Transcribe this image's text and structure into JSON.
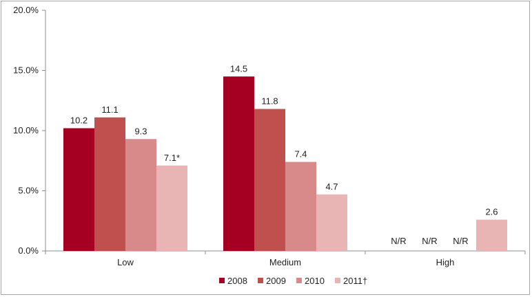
{
  "chart_data": {
    "type": "bar",
    "title": "",
    "xlabel": "",
    "ylabel": "",
    "categories": [
      "Low",
      "Medium",
      "High"
    ],
    "ylim": [
      0,
      20
    ],
    "yticks": [
      0,
      5,
      10,
      15,
      20
    ],
    "ytick_labels": [
      "0.0%",
      "5.0%",
      "10.0%",
      "15.0%",
      "20.0%"
    ],
    "grid": false,
    "legend_position": "bottom",
    "series": [
      {
        "name": "2008",
        "color": "#a50021",
        "values": [
          10.2,
          14.5,
          null
        ],
        "labels": [
          "10.2",
          "14.5",
          "N/R"
        ]
      },
      {
        "name": "2009",
        "color": "#c0504d",
        "values": [
          11.1,
          11.8,
          null
        ],
        "labels": [
          "11.1",
          "11.8",
          "N/R"
        ]
      },
      {
        "name": "2010",
        "color": "#d88a8a",
        "values": [
          9.3,
          7.4,
          null
        ],
        "labels": [
          "9.3",
          "7.4",
          "N/R"
        ]
      },
      {
        "name": "2011†",
        "color": "#e8b4b4",
        "values": [
          7.1,
          4.7,
          2.6
        ],
        "labels": [
          "7.1*",
          "4.7",
          "2.6"
        ]
      }
    ]
  }
}
